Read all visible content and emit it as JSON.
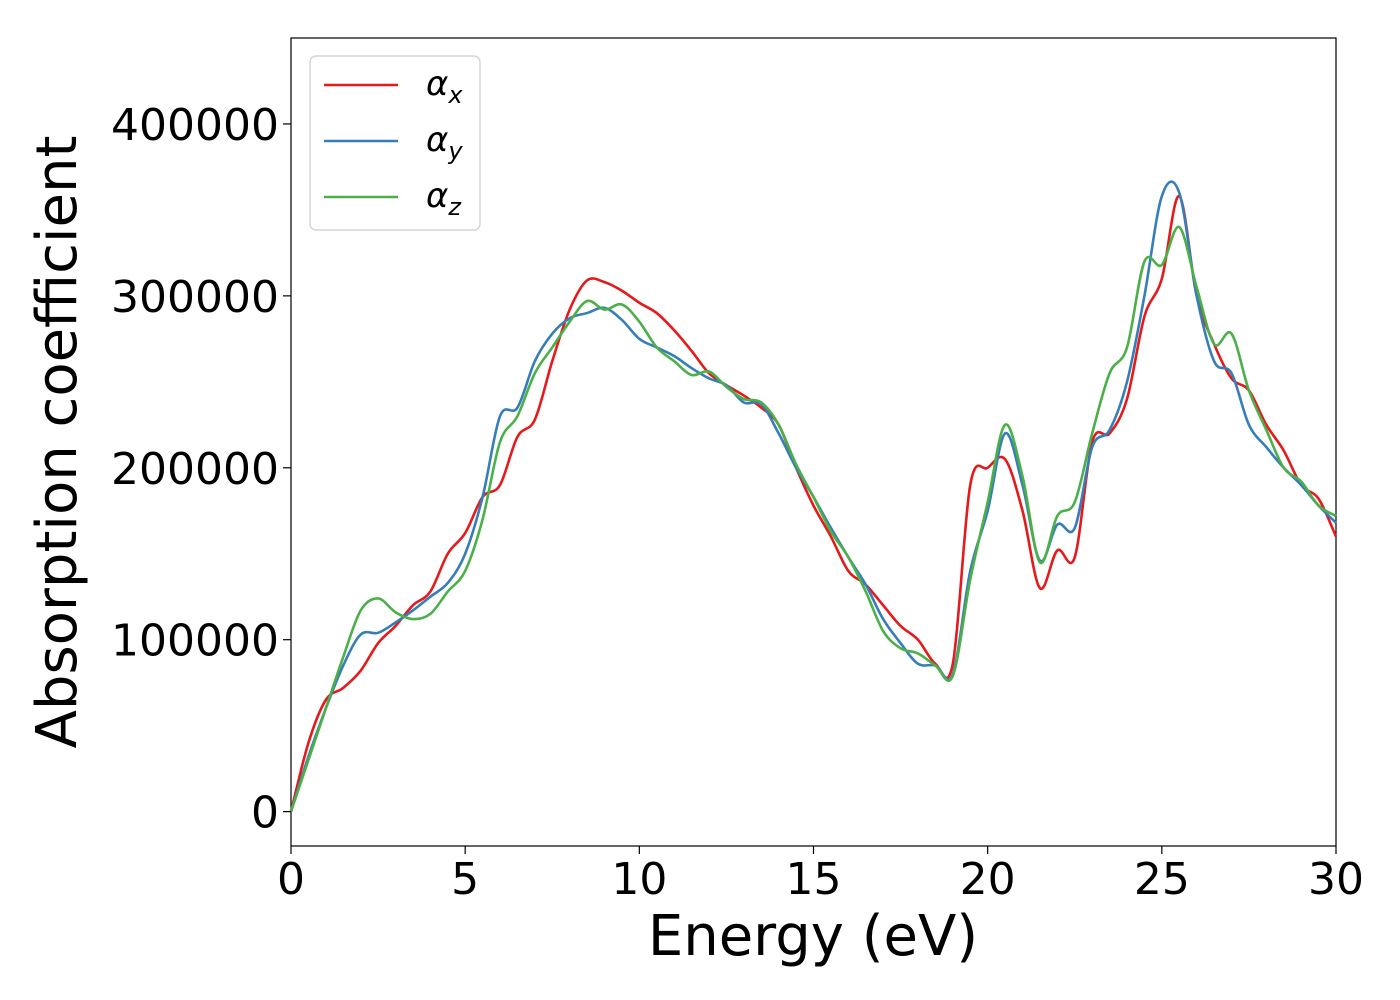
{
  "chart_data": {
    "type": "line",
    "xlabel": "Energy (eV)",
    "ylabel": "Absorption coefficient",
    "xlim": [
      0,
      30
    ],
    "ylim": [
      -20000,
      450000
    ],
    "xticks": [
      0,
      5,
      10,
      15,
      20,
      25,
      30
    ],
    "xtick_labels": [
      "0",
      "5",
      "10",
      "15",
      "20",
      "25",
      "30"
    ],
    "yticks": [
      0,
      100000,
      200000,
      300000,
      400000
    ],
    "ytick_labels": [
      "0",
      "100000",
      "200000",
      "300000",
      "400000"
    ],
    "grid": false,
    "legend_position": "top-left",
    "series": [
      {
        "name": "α",
        "subscript": "x",
        "color": "#e41a1c",
        "x": [
          0,
          0.5,
          1,
          1.5,
          2,
          2.5,
          3,
          3.5,
          4,
          4.5,
          5,
          5.5,
          6,
          6.5,
          7,
          7.5,
          8,
          8.5,
          9,
          9.5,
          10,
          10.5,
          11,
          11.5,
          12,
          12.5,
          13,
          13.5,
          14,
          14.5,
          15,
          15.5,
          16,
          16.5,
          17,
          17.5,
          18,
          18.5,
          19,
          19.5,
          20,
          20.5,
          21,
          21.5,
          22,
          22.5,
          23,
          23.5,
          24,
          24.5,
          25,
          25.5,
          26,
          26.5,
          27,
          27.5,
          28,
          28.5,
          29,
          29.5,
          30
        ],
        "y": [
          0,
          40000,
          65000,
          72000,
          82000,
          98000,
          108000,
          120000,
          128000,
          150000,
          162000,
          183000,
          190000,
          218000,
          228000,
          262000,
          292000,
          309000,
          308000,
          303000,
          296000,
          290000,
          280000,
          268000,
          255000,
          248000,
          242000,
          235000,
          225000,
          200000,
          178000,
          160000,
          140000,
          132000,
          120000,
          108000,
          100000,
          86000,
          86000,
          190000,
          200000,
          205000,
          175000,
          130000,
          152000,
          148000,
          215000,
          220000,
          240000,
          288000,
          310000,
          358000,
          300000,
          272000,
          252000,
          245000,
          225000,
          210000,
          190000,
          182000,
          160000
        ]
      },
      {
        "name": "α",
        "subscript": "y",
        "color": "#377eb8",
        "x": [
          0,
          0.5,
          1,
          1.5,
          2,
          2.5,
          3,
          3.5,
          4,
          4.5,
          5,
          5.5,
          6,
          6.5,
          7,
          7.5,
          8,
          8.5,
          9,
          9.5,
          10,
          10.5,
          11,
          11.5,
          12,
          12.5,
          13,
          13.5,
          14,
          14.5,
          15,
          15.5,
          16,
          16.5,
          17,
          17.5,
          18,
          18.5,
          19,
          19.5,
          20,
          20.5,
          21,
          21.5,
          22,
          22.5,
          23,
          23.5,
          24,
          24.5,
          25,
          25.5,
          26,
          26.5,
          27,
          27.5,
          28,
          28.5,
          29,
          29.5,
          30
        ],
        "y": [
          0,
          32000,
          60000,
          85000,
          103000,
          104000,
          110000,
          117000,
          125000,
          133000,
          150000,
          183000,
          230000,
          235000,
          262000,
          278000,
          287000,
          290000,
          293000,
          286000,
          275000,
          270000,
          265000,
          258000,
          252000,
          248000,
          238000,
          237000,
          220000,
          200000,
          183000,
          165000,
          148000,
          132000,
          112000,
          98000,
          86000,
          85000,
          80000,
          140000,
          175000,
          220000,
          190000,
          146000,
          167000,
          165000,
          212000,
          222000,
          250000,
          300000,
          358000,
          360000,
          300000,
          262000,
          255000,
          225000,
          212000,
          200000,
          190000,
          178000,
          168000
        ]
      },
      {
        "name": "α",
        "subscript": "z",
        "color": "#4daf4a",
        "x": [
          0,
          0.5,
          1,
          1.5,
          2,
          2.5,
          3,
          3.5,
          4,
          4.5,
          5,
          5.5,
          6,
          6.5,
          7,
          7.5,
          8,
          8.5,
          9,
          9.5,
          10,
          10.5,
          11,
          11.5,
          12,
          12.5,
          13,
          13.5,
          14,
          14.5,
          15,
          15.5,
          16,
          16.5,
          17,
          17.5,
          18,
          18.5,
          19,
          19.5,
          20,
          20.5,
          21,
          21.5,
          22,
          22.5,
          23,
          23.5,
          24,
          24.5,
          25,
          25.5,
          26,
          26.5,
          27,
          27.5,
          28,
          28.5,
          29,
          29.5,
          30
        ],
        "y": [
          0,
          30000,
          60000,
          90000,
          117000,
          124000,
          116000,
          112000,
          115000,
          128000,
          140000,
          170000,
          215000,
          230000,
          255000,
          270000,
          285000,
          297000,
          292000,
          295000,
          285000,
          270000,
          262000,
          254000,
          256000,
          247000,
          240000,
          238000,
          225000,
          202000,
          183000,
          163000,
          148000,
          128000,
          105000,
          95000,
          92000,
          85000,
          79000,
          135000,
          180000,
          225000,
          195000,
          145000,
          172000,
          180000,
          220000,
          255000,
          270000,
          320000,
          318000,
          340000,
          305000,
          272000,
          278000,
          245000,
          222000,
          200000,
          192000,
          178000,
          172000
        ]
      }
    ]
  }
}
